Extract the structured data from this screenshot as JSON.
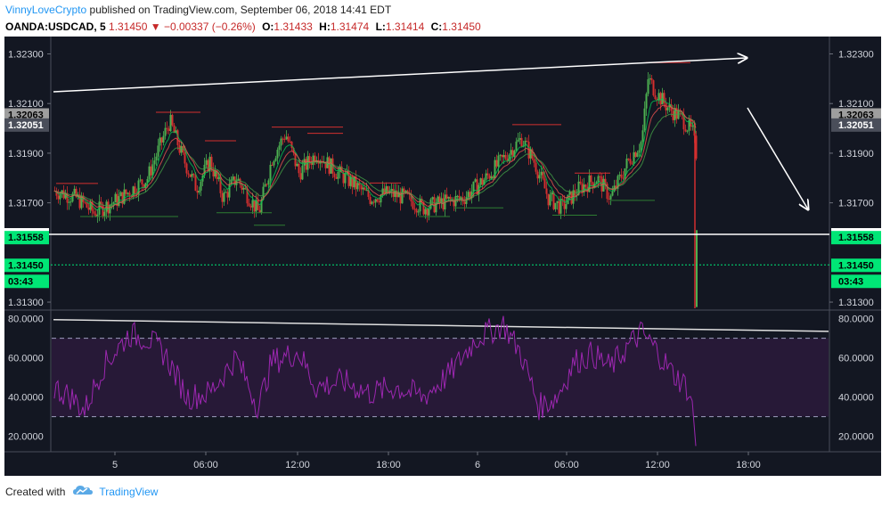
{
  "header": {
    "author": "VinnyLoveCrypto",
    "published_text": "published on TradingView.com, September 06, 2018 14:41 EDT",
    "symbol": "OANDA:USDCAD, 5",
    "last": "1.31450",
    "change_arrow": "▼",
    "change": "−0.00337 (−0.26%)",
    "open_label": "O:",
    "open": "1.31433",
    "high_label": "H:",
    "high": "1.31474",
    "low_label": "L:",
    "low": "1.31414",
    "close_label": "C:",
    "close": "1.31450"
  },
  "price_axis": {
    "ticks": [
      "1.32300",
      "1.32100",
      "1.31900",
      "1.31700",
      "1.31300"
    ],
    "tick_values": [
      1.323,
      1.321,
      1.319,
      1.317,
      1.313
    ],
    "ylim": [
      1.31275,
      1.3237
    ]
  },
  "price_markers": [
    {
      "label": "1.32063",
      "value": 1.32063,
      "style": "grey"
    },
    {
      "label": "1.32051",
      "value": 1.32051,
      "style": "dark"
    },
    {
      "label": "1.31573",
      "value": 1.31573,
      "style": "white"
    },
    {
      "label": "1.31558",
      "value": 1.31558,
      "style": "green"
    },
    {
      "label": "1.31450",
      "value": 1.3145,
      "style": "green"
    },
    {
      "label": "03:43",
      "value": 1.3145,
      "style": "green-time"
    }
  ],
  "rsi_axis": {
    "ticks": [
      "80.0000",
      "60.0000",
      "40.0000",
      "20.0000"
    ],
    "tick_values": [
      80,
      60,
      40,
      20
    ],
    "ylim": [
      13,
      83
    ],
    "band": [
      30,
      70
    ]
  },
  "time_axis": {
    "labels": [
      "5",
      "06:00",
      "12:00",
      "18:00",
      "6",
      "06:00",
      "12:00",
      "18:00"
    ]
  },
  "colors": {
    "background": "#131722",
    "up": "#4caf50",
    "down": "#d32f2f",
    "rsi_line": "#9c27b0",
    "rsi_band": "#2a1a3a",
    "current_price": "#00e676",
    "trendline": "#ffffff"
  },
  "footer": {
    "created_with": "Created with",
    "brand": "TradingView",
    "logo_icon": "tradingview-cloud-icon"
  }
}
